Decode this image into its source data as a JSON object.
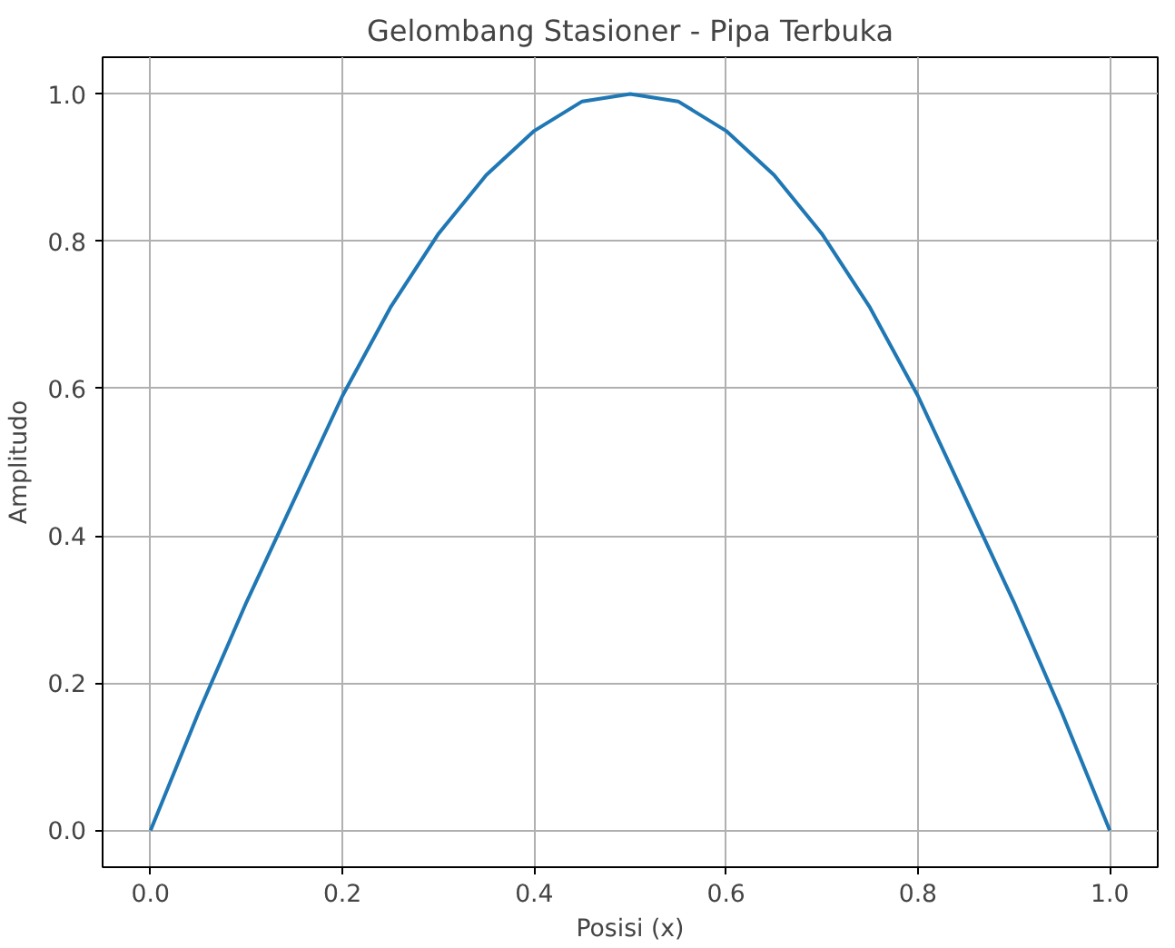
{
  "chart_data": {
    "type": "line",
    "title": "Gelombang Stasioner - Pipa Terbuka",
    "xlabel": "Posisi (x)",
    "ylabel": "Amplitudo",
    "x": [
      0,
      0.05,
      0.1,
      0.15,
      0.2,
      0.25,
      0.3,
      0.35,
      0.4,
      0.45,
      0.5,
      0.55,
      0.6,
      0.65,
      0.7,
      0.75,
      0.8,
      0.85,
      0.9,
      0.95,
      1.0
    ],
    "series": [
      {
        "color": "#1f77b4",
        "values": [
          0,
          0.16,
          0.31,
          0.45,
          0.59,
          0.71,
          0.81,
          0.89,
          0.95,
          0.99,
          1.0,
          0.99,
          0.95,
          0.89,
          0.81,
          0.71,
          0.59,
          0.45,
          0.31,
          0.16,
          0
        ]
      }
    ],
    "xlim": [
      -0.05,
      1.05
    ],
    "ylim": [
      -0.05,
      1.05
    ],
    "xticks": [
      {
        "value": 0,
        "label": "0.0"
      },
      {
        "value": 0.2,
        "label": "0.2"
      },
      {
        "value": 0.4,
        "label": "0.4"
      },
      {
        "value": 0.6,
        "label": "0.6"
      },
      {
        "value": 0.8,
        "label": "0.8"
      },
      {
        "value": 1.0,
        "label": "1.0"
      }
    ],
    "yticks": [
      {
        "value": 0,
        "label": "0.0"
      },
      {
        "value": 0.2,
        "label": "0.2"
      },
      {
        "value": 0.4,
        "label": "0.4"
      },
      {
        "value": 0.6,
        "label": "0.6"
      },
      {
        "value": 0.8,
        "label": "0.8"
      },
      {
        "value": 1.0,
        "label": "1.0"
      }
    ],
    "grid": true
  }
}
